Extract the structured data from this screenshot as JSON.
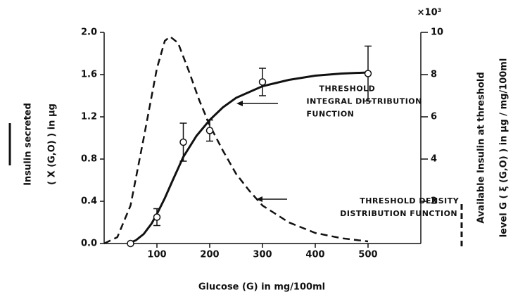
{
  "chart_data": {
    "type": "line",
    "xlabel": "Glucose (G) in mg/100ml",
    "ylabel": [
      "Insulin secreted",
      "( X (G,O) ) in μg"
    ],
    "y2label": [
      "Available Insulin at threshold",
      "level G ( ξ (G,O) ) in μg / mg/100ml"
    ],
    "y2_multiplier": "×10³",
    "xlim": [
      0,
      600
    ],
    "xticks": [
      100,
      200,
      300,
      400,
      500
    ],
    "ylim": [
      0,
      2
    ],
    "yticks": [
      {
        "value": 0,
        "label": "0.0"
      },
      0.4,
      0.8,
      1.2,
      1.6,
      {
        "value": 2,
        "label": "2.0"
      }
    ],
    "y2lim": [
      0,
      10
    ],
    "y2ticks": [
      2,
      4,
      6,
      8,
      10
    ],
    "color": "#111111",
    "series": [
      {
        "style": "points",
        "x": [
          50,
          100,
          150,
          200,
          300,
          500
        ],
        "values": [
          0,
          0.25,
          0.96,
          1.07,
          1.53,
          1.61
        ],
        "errors": [
          0,
          0.08,
          0.18,
          0.1,
          0.13,
          0.26
        ]
      },
      {
        "style": "solid",
        "x": [
          45,
          60,
          75,
          90,
          100,
          115,
          130,
          150,
          175,
          200,
          225,
          250,
          300,
          350,
          400,
          450,
          500
        ],
        "values": [
          0,
          0.03,
          0.09,
          0.19,
          0.28,
          0.43,
          0.6,
          0.82,
          1.02,
          1.17,
          1.29,
          1.38,
          1.49,
          1.55,
          1.59,
          1.61,
          1.62
        ]
      },
      {
        "style": "dashed",
        "axis": "y2",
        "x": [
          0,
          25,
          50,
          75,
          100,
          115,
          125,
          140,
          160,
          180,
          200,
          225,
          250,
          275,
          300,
          350,
          400,
          450,
          500
        ],
        "values": [
          0,
          0.3,
          1.8,
          5.0,
          8.3,
          9.6,
          9.8,
          9.5,
          8.2,
          6.8,
          5.6,
          4.4,
          3.3,
          2.5,
          1.8,
          1.0,
          0.5,
          0.25,
          0.1
        ]
      }
    ],
    "annotations": [
      {
        "lines": [
          "THRESHOLD",
          "INTEGRAL DISTRIBUTION",
          "FUNCTION"
        ],
        "x": 250,
        "y": 1.33
      },
      {
        "lines": [
          "THRESHOLD DENSITY",
          "DISTRIBUTION FUNCTION"
        ],
        "x": 287,
        "y": 0.4
      }
    ]
  }
}
